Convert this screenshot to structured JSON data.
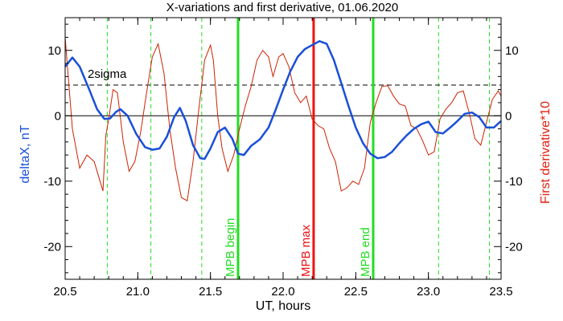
{
  "chart_data": {
    "type": "line",
    "title": "X-variations and first derivative, 01.06.2020",
    "xlabel": "UT, hours",
    "ylabel_left": "deltaX, nT",
    "ylabel_right": "First derivative*10",
    "xlim": [
      20.5,
      23.5
    ],
    "ylim": [
      -25,
      15
    ],
    "x_ticks": [
      "20.5",
      "21.0",
      "21.5",
      "22.0",
      "22.5",
      "23.0",
      "23.5"
    ],
    "y_ticks": [
      "-20",
      "-10",
      "0",
      "10"
    ],
    "threshold": {
      "label": "2sigma",
      "value": 4.7
    },
    "zero_line": 0,
    "vlines_dashed": [
      20.79,
      21.09,
      21.44,
      23.07,
      23.42
    ],
    "markers": [
      {
        "label": "MPB begin",
        "x": 21.69,
        "color": "#22dd22"
      },
      {
        "label": "MPB max",
        "x": 22.21,
        "color": "#ee1111"
      },
      {
        "label": "MPB end",
        "x": 22.62,
        "color": "#22dd22"
      }
    ],
    "series": [
      {
        "color": "#1a4fd8",
        "x": [
          20.5,
          20.55,
          20.6,
          20.67,
          20.72,
          20.77,
          20.81,
          20.85,
          20.88,
          20.93,
          20.99,
          21.05,
          21.1,
          21.15,
          21.2,
          21.25,
          21.29,
          21.33,
          21.38,
          21.43,
          21.46,
          21.5,
          21.55,
          21.6,
          21.65,
          21.69,
          21.73,
          21.78,
          21.84,
          21.9,
          21.95,
          22.0,
          22.05,
          22.1,
          22.15,
          22.2,
          22.25,
          22.3,
          22.35,
          22.4,
          22.45,
          22.5,
          22.55,
          22.6,
          22.65,
          22.7,
          22.75,
          22.8,
          22.85,
          22.9,
          22.95,
          23.0,
          23.05,
          23.1,
          23.15,
          23.2,
          23.25,
          23.3,
          23.35,
          23.4,
          23.45,
          23.5
        ],
        "values": [
          7.5,
          8.9,
          7.5,
          3.8,
          1.0,
          -0.5,
          -0.4,
          0.6,
          1.0,
          0.0,
          -2.8,
          -4.8,
          -5.2,
          -5.0,
          -3.2,
          -0.2,
          1.2,
          -0.8,
          -4.5,
          -6.5,
          -6.6,
          -5.0,
          -2.5,
          -1.8,
          -3.5,
          -5.8,
          -6.0,
          -4.6,
          -3.6,
          -1.8,
          1.0,
          4.0,
          6.8,
          9.0,
          10.2,
          10.8,
          11.4,
          11.0,
          8.5,
          5.0,
          1.5,
          -1.8,
          -4.2,
          -5.8,
          -6.5,
          -6.3,
          -5.5,
          -4.2,
          -3.0,
          -2.0,
          -1.3,
          -0.9,
          -2.5,
          -2.7,
          -1.8,
          -0.8,
          0.3,
          0.5,
          -0.2,
          -1.8,
          -1.8,
          -0.8
        ]
      },
      {
        "color": "#cc2200",
        "x": [
          20.5,
          20.55,
          20.6,
          20.65,
          20.7,
          20.74,
          20.76,
          20.78,
          20.8,
          20.83,
          20.86,
          20.9,
          20.94,
          20.98,
          21.02,
          21.06,
          21.1,
          21.14,
          21.18,
          21.22,
          21.24,
          21.26,
          21.3,
          21.34,
          21.38,
          21.42,
          21.46,
          21.5,
          21.52,
          21.55,
          21.58,
          21.62,
          21.66,
          21.7,
          21.74,
          21.78,
          21.82,
          21.86,
          21.9,
          21.93,
          21.97,
          22.0,
          22.04,
          22.08,
          22.12,
          22.16,
          22.2,
          22.24,
          22.28,
          22.32,
          22.36,
          22.4,
          22.44,
          22.48,
          22.52,
          22.56,
          22.6,
          22.64,
          22.68,
          22.72,
          22.76,
          22.8,
          22.84,
          22.88,
          22.92,
          22.96,
          23.0,
          23.04,
          23.08,
          23.12,
          23.16,
          23.2,
          23.24,
          23.28,
          23.32,
          23.36,
          23.4,
          23.44,
          23.48,
          23.5
        ],
        "values": [
          12.0,
          -2.0,
          -8.0,
          -6.0,
          -7.0,
          -10.0,
          -11.5,
          -3.0,
          -0.5,
          4.0,
          3.5,
          -4.0,
          -8.5,
          -7.0,
          -2.5,
          3.5,
          9.0,
          11.0,
          6.5,
          -2.0,
          -5.0,
          -8.0,
          -12.5,
          -13.0,
          -7.0,
          1.0,
          8.5,
          10.8,
          8.5,
          0.0,
          -5.0,
          -8.5,
          -6.0,
          -2.0,
          1.5,
          4.5,
          8.5,
          10.0,
          9.0,
          6.0,
          9.0,
          9.5,
          7.5,
          3.5,
          2.0,
          3.0,
          -0.5,
          -1.5,
          -2.0,
          -5.0,
          -7.0,
          -11.5,
          -11.0,
          -10.0,
          -10.5,
          -8.0,
          -1.0,
          2.0,
          4.5,
          4.6,
          3.0,
          1.8,
          1.5,
          -1.5,
          -2.0,
          -3.8,
          -6.0,
          -5.5,
          -0.5,
          1.0,
          2.0,
          3.5,
          3.8,
          0.5,
          -3.5,
          -4.5,
          -1.0,
          2.5,
          3.8,
          3.0
        ]
      }
    ]
  }
}
